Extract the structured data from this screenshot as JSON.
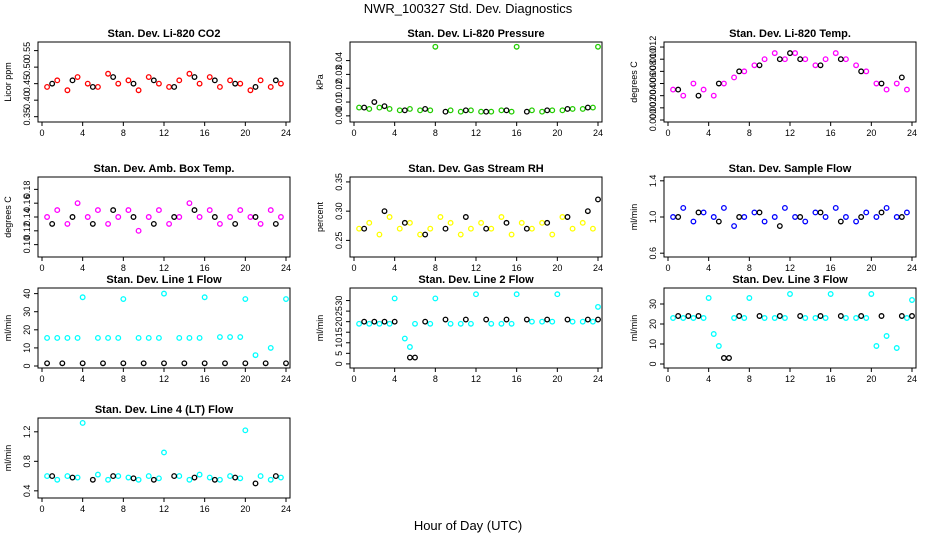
{
  "title": "NWR_100327  Std. Dev. Diagnostics",
  "xlabel": "Hour of Day (UTC)",
  "colors": {
    "red": "#ff0000",
    "green": "#22cc00",
    "magenta": "#ff00ff",
    "yellow": "#ffff00",
    "blue": "#0000ff",
    "cyan": "#00ffff",
    "black": "#000000"
  },
  "chart_data": [
    {
      "type": "scatter",
      "title": "Stan. Dev. Li-820 CO2",
      "ylabel": "Licor ppm",
      "xlim": [
        0,
        24
      ],
      "ylim": [
        0.34,
        0.57
      ],
      "xticks": [
        "0",
        "4",
        "8",
        "12",
        "16",
        "20",
        "24"
      ],
      "yticks": [
        "0.35",
        "0.40",
        "0.45",
        "0.50",
        "0.55"
      ],
      "series": [
        {
          "color": "red",
          "x": [
            0.5,
            1.5,
            2.5,
            3.5,
            4.5,
            5.5,
            6.5,
            7.5,
            8.5,
            9.5,
            10.5,
            11.5,
            12.5,
            13.5,
            14.5,
            15.5,
            16.5,
            17.5,
            18.5,
            19.5,
            20.5,
            21.5,
            22.5,
            23.5
          ],
          "y": [
            0.44,
            0.46,
            0.43,
            0.47,
            0.45,
            0.44,
            0.48,
            0.45,
            0.46,
            0.43,
            0.47,
            0.45,
            0.44,
            0.46,
            0.48,
            0.45,
            0.47,
            0.44,
            0.46,
            0.45,
            0.43,
            0.46,
            0.44,
            0.45
          ]
        },
        {
          "color": "black",
          "x": [
            1,
            3,
            5,
            7,
            9,
            11,
            13,
            15,
            17,
            19,
            21,
            23
          ],
          "y": [
            0.45,
            0.46,
            0.44,
            0.47,
            0.45,
            0.46,
            0.44,
            0.47,
            0.46,
            0.45,
            0.44,
            0.46
          ]
        }
      ]
    },
    {
      "type": "scatter",
      "title": "Stan. Dev. Li-820 Pressure",
      "ylabel": "kPa",
      "xlim": [
        0,
        24
      ],
      "ylim": [
        -0.003,
        0.052
      ],
      "xticks": [
        "0",
        "4",
        "8",
        "12",
        "16",
        "20",
        "24"
      ],
      "yticks": [
        "0.00",
        "0.01",
        "0.02",
        "0.03",
        "0.04"
      ],
      "series": [
        {
          "color": "green",
          "x": [
            0.5,
            1.5,
            2.5,
            3.5,
            4.5,
            5.5,
            6.5,
            7.5,
            8,
            9.5,
            10.5,
            11.5,
            12.5,
            13.5,
            14.5,
            15.5,
            16,
            17.5,
            18.5,
            19.5,
            20.5,
            21.5,
            22.5,
            23.5,
            24
          ],
          "y": [
            0.006,
            0.005,
            0.006,
            0.005,
            0.004,
            0.005,
            0.004,
            0.004,
            0.05,
            0.004,
            0.003,
            0.004,
            0.003,
            0.003,
            0.004,
            0.003,
            0.05,
            0.004,
            0.003,
            0.004,
            0.004,
            0.005,
            0.005,
            0.006,
            0.05
          ]
        },
        {
          "color": "black",
          "x": [
            1,
            2,
            3,
            5,
            7,
            9,
            11,
            13,
            15,
            17,
            19,
            21,
            23
          ],
          "y": [
            0.006,
            0.01,
            0.007,
            0.004,
            0.005,
            0.003,
            0.004,
            0.003,
            0.004,
            0.003,
            0.004,
            0.005,
            0.006
          ]
        }
      ]
    },
    {
      "type": "scatter",
      "title": "Stan. Dev. Li-820 Temp.",
      "ylabel": "degrees C",
      "xlim": [
        0,
        24
      ],
      "ylim": [
        0.0,
        0.0125
      ],
      "xticks": [
        "0",
        "4",
        "8",
        "12",
        "16",
        "20",
        "24"
      ],
      "yticks": [
        "0.000",
        "0.002",
        "0.004",
        "0.006",
        "0.008",
        "0.010",
        "0.012"
      ],
      "series": [
        {
          "color": "magenta",
          "x": [
            0.5,
            1.5,
            2.5,
            3.5,
            4.5,
            5.5,
            6.5,
            7.5,
            8.5,
            9.5,
            10.5,
            11.5,
            12.5,
            13.5,
            14.5,
            15.5,
            16.5,
            17.5,
            18.5,
            19.5,
            20.5,
            21.5,
            22.5,
            23.5
          ],
          "y": [
            0.005,
            0.004,
            0.006,
            0.005,
            0.004,
            0.006,
            0.007,
            0.008,
            0.009,
            0.01,
            0.011,
            0.01,
            0.011,
            0.01,
            0.009,
            0.01,
            0.011,
            0.01,
            0.009,
            0.008,
            0.006,
            0.005,
            0.006,
            0.005
          ]
        },
        {
          "color": "black",
          "x": [
            1,
            3,
            5,
            7,
            9,
            11,
            12,
            13,
            15,
            17,
            19,
            21,
            23
          ],
          "y": [
            0.005,
            0.004,
            0.006,
            0.008,
            0.009,
            0.01,
            0.011,
            0.01,
            0.009,
            0.01,
            0.008,
            0.006,
            0.007
          ]
        }
      ]
    },
    {
      "type": "scatter",
      "title": "Stan. Dev. Amb. Box Temp.",
      "ylabel": "degrees C",
      "xlim": [
        0,
        24
      ],
      "ylim": [
        0.085,
        0.195
      ],
      "xticks": [
        "0",
        "4",
        "8",
        "12",
        "16",
        "20",
        "24"
      ],
      "yticks": [
        "0.10",
        "0.12",
        "0.14",
        "0.16",
        "0.18"
      ],
      "series": [
        {
          "color": "magenta",
          "x": [
            0.5,
            1.5,
            2.5,
            3.5,
            4.5,
            5.5,
            6.5,
            7.5,
            8.5,
            9.5,
            10.5,
            11.5,
            12.5,
            13.5,
            14.5,
            15.5,
            16.5,
            17.5,
            18.5,
            19.5,
            20.5,
            21.5,
            22.5,
            23.5
          ],
          "y": [
            0.14,
            0.15,
            0.13,
            0.16,
            0.14,
            0.15,
            0.13,
            0.14,
            0.15,
            0.12,
            0.14,
            0.15,
            0.13,
            0.14,
            0.16,
            0.14,
            0.15,
            0.13,
            0.14,
            0.15,
            0.14,
            0.13,
            0.15,
            0.14
          ]
        },
        {
          "color": "black",
          "x": [
            1,
            3,
            5,
            7,
            9,
            11,
            13,
            15,
            17,
            19,
            21,
            23
          ],
          "y": [
            0.13,
            0.14,
            0.13,
            0.15,
            0.14,
            0.13,
            0.14,
            0.15,
            0.14,
            0.13,
            0.14,
            0.13
          ]
        }
      ]
    },
    {
      "type": "scatter",
      "title": "Stan. Dev. Gas Stream RH",
      "ylabel": "percent",
      "xlim": [
        0,
        24
      ],
      "ylim": [
        0.225,
        0.355
      ],
      "xticks": [
        "0",
        "4",
        "8",
        "12",
        "16",
        "20",
        "24"
      ],
      "yticks": [
        "0.25",
        "0.30",
        "0.35"
      ],
      "series": [
        {
          "color": "yellow",
          "x": [
            0.5,
            1.5,
            2.5,
            3.5,
            4.5,
            5.5,
            6.5,
            7.5,
            8.5,
            9.5,
            10.5,
            11.5,
            12.5,
            13.5,
            14.5,
            15.5,
            16.5,
            17.5,
            18.5,
            19.5,
            20.5,
            21.5,
            22.5,
            23.5
          ],
          "y": [
            0.27,
            0.28,
            0.26,
            0.29,
            0.27,
            0.28,
            0.26,
            0.27,
            0.29,
            0.28,
            0.26,
            0.27,
            0.28,
            0.27,
            0.29,
            0.26,
            0.28,
            0.27,
            0.28,
            0.26,
            0.29,
            0.27,
            0.28,
            0.27
          ]
        },
        {
          "color": "black",
          "x": [
            1,
            3,
            5,
            7,
            9,
            11,
            13,
            15,
            17,
            19,
            21,
            23,
            24
          ],
          "y": [
            0.27,
            0.3,
            0.28,
            0.26,
            0.27,
            0.29,
            0.27,
            0.28,
            0.27,
            0.28,
            0.29,
            0.3,
            0.32
          ]
        }
      ]
    },
    {
      "type": "scatter",
      "title": "Stan. Dev. Sample Flow",
      "ylabel": "ml/min",
      "xlim": [
        0,
        24
      ],
      "ylim": [
        0.58,
        1.42
      ],
      "xticks": [
        "0",
        "4",
        "8",
        "12",
        "16",
        "20",
        "24"
      ],
      "yticks": [
        "0.6",
        "1.0",
        "1.4"
      ],
      "series": [
        {
          "color": "blue",
          "x": [
            0.5,
            1.5,
            2.5,
            3.5,
            4.5,
            5.5,
            6.5,
            7.5,
            8.5,
            9.5,
            10.5,
            11.5,
            12.5,
            13.5,
            14.5,
            15.5,
            16.5,
            17.5,
            18.5,
            19.5,
            20.5,
            21.5,
            22.5,
            23.5
          ],
          "y": [
            1.0,
            1.1,
            0.95,
            1.05,
            1.0,
            1.1,
            0.9,
            1.0,
            1.05,
            0.95,
            1.0,
            1.1,
            1.0,
            0.95,
            1.05,
            1.0,
            1.1,
            1.0,
            0.95,
            1.05,
            1.0,
            1.1,
            1.0,
            1.05
          ]
        },
        {
          "color": "black",
          "x": [
            1,
            3,
            5,
            7,
            9,
            11,
            13,
            15,
            17,
            19,
            21,
            23
          ],
          "y": [
            1.0,
            1.05,
            0.95,
            1.0,
            1.05,
            0.9,
            1.0,
            1.05,
            0.95,
            1.0,
            1.05,
            1.0
          ]
        }
      ]
    },
    {
      "type": "scatter",
      "title": "Stan. Dev. Line 1 Flow",
      "ylabel": "ml/min",
      "xlim": [
        0,
        24
      ],
      "ylim": [
        0,
        42
      ],
      "xticks": [
        "0",
        "4",
        "8",
        "12",
        "16",
        "20",
        "24"
      ],
      "yticks": [
        "0",
        "10",
        "20",
        "30",
        "40"
      ],
      "series": [
        {
          "color": "cyan",
          "x": [
            0.5,
            1.5,
            2.5,
            3.5,
            4,
            5.5,
            6.5,
            7.5,
            8,
            9.5,
            10.5,
            11.5,
            12,
            13.5,
            14.5,
            15.5,
            16,
            17.5,
            18.5,
            19.5,
            20,
            21,
            22.5,
            24
          ],
          "y": [
            15.5,
            15.5,
            15.5,
            15.5,
            38,
            15.5,
            15.5,
            15.5,
            37,
            15.5,
            15.5,
            15.5,
            40,
            15.5,
            15.5,
            15.5,
            38,
            16,
            16,
            16,
            37,
            6,
            10,
            37
          ]
        },
        {
          "color": "black",
          "x": [
            0.5,
            2,
            4,
            6,
            8,
            10,
            12,
            14,
            16,
            18,
            20,
            22,
            24
          ],
          "y": [
            1.5,
            1.5,
            1.5,
            1.5,
            1.5,
            1.5,
            1.5,
            1.5,
            1.5,
            1.5,
            1.5,
            1.5,
            1.5
          ]
        }
      ]
    },
    {
      "type": "scatter",
      "title": "Stan. Dev. Line 2 Flow",
      "ylabel": "ml/min",
      "xlim": [
        0,
        24
      ],
      "ylim": [
        -1,
        35
      ],
      "xticks": [
        "0",
        "4",
        "8",
        "12",
        "16",
        "20",
        "24"
      ],
      "yticks": [
        "0",
        "5",
        "10",
        "15",
        "20",
        "25",
        "30"
      ],
      "series": [
        {
          "color": "cyan",
          "x": [
            0.5,
            1.5,
            2.5,
            3.5,
            4,
            5,
            5.5,
            6,
            7.5,
            8,
            9.5,
            10.5,
            11.5,
            12,
            13.5,
            14.5,
            15.5,
            16,
            17.5,
            18.5,
            19.5,
            20,
            21.5,
            22.5,
            23.5,
            24
          ],
          "y": [
            19,
            19,
            19,
            19,
            31,
            12,
            8,
            19,
            19,
            31,
            19,
            19,
            19,
            33,
            19,
            19,
            19,
            33,
            20,
            20,
            20,
            33,
            20,
            20,
            20,
            27
          ]
        },
        {
          "color": "black",
          "x": [
            1,
            2,
            3,
            4,
            5.5,
            6,
            7,
            9,
            11,
            13,
            15,
            17,
            19,
            21,
            23,
            24
          ],
          "y": [
            20,
            20,
            20,
            20,
            3,
            3,
            20,
            21,
            21,
            21,
            21,
            21,
            21,
            21,
            21,
            21
          ]
        }
      ]
    },
    {
      "type": "scatter",
      "title": "Stan. Dev. Line 3 Flow",
      "ylabel": "ml/min",
      "xlim": [
        0,
        24
      ],
      "ylim": [
        -1,
        37
      ],
      "xticks": [
        "0",
        "4",
        "8",
        "12",
        "16",
        "20",
        "24"
      ],
      "yticks": [
        "0",
        "10",
        "20",
        "30"
      ],
      "series": [
        {
          "color": "cyan",
          "x": [
            0.5,
            1.5,
            2.5,
            3.5,
            4,
            4.5,
            5,
            6.5,
            7.5,
            8,
            9.5,
            10.5,
            11.5,
            12,
            13.5,
            14.5,
            15.5,
            16,
            17.5,
            18.5,
            19.5,
            20,
            20.5,
            21.5,
            22.5,
            23.5,
            24
          ],
          "y": [
            23,
            23,
            23,
            23,
            33,
            15,
            9,
            23,
            23,
            33,
            23,
            23,
            23,
            35,
            23,
            23,
            23,
            35,
            23,
            23,
            23,
            35,
            9,
            14,
            8,
            23,
            32
          ]
        },
        {
          "color": "black",
          "x": [
            1,
            2,
            3,
            5.5,
            6,
            7,
            9,
            11,
            13,
            15,
            17,
            19,
            21,
            23,
            24
          ],
          "y": [
            24,
            24,
            24,
            3,
            3,
            24,
            24,
            24,
            24,
            24,
            24,
            24,
            24,
            24,
            24
          ]
        }
      ]
    },
    {
      "type": "scatter",
      "title": "Stan. Dev. Line 4 (LT) Flow",
      "ylabel": "ml/min",
      "xlim": [
        0,
        24
      ],
      "ylim": [
        0.33,
        1.36
      ],
      "xticks": [
        "0",
        "4",
        "8",
        "12",
        "16",
        "20",
        "24"
      ],
      "yticks": [
        "0.4",
        "0.8",
        "1.2"
      ],
      "series": [
        {
          "color": "cyan",
          "x": [
            0.5,
            1.5,
            2.5,
            3.5,
            4,
            5.5,
            6.5,
            7.5,
            8.5,
            9.5,
            10.5,
            11.5,
            12,
            13.5,
            14.5,
            15.5,
            16.5,
            17.5,
            18.5,
            19.5,
            20,
            21.5,
            22.5,
            23.5
          ],
          "y": [
            0.6,
            0.55,
            0.6,
            0.58,
            1.32,
            0.62,
            0.55,
            0.6,
            0.58,
            0.55,
            0.6,
            0.57,
            0.92,
            0.6,
            0.55,
            0.62,
            0.58,
            0.55,
            0.6,
            0.57,
            1.22,
            0.6,
            0.55,
            0.58
          ]
        },
        {
          "color": "black",
          "x": [
            1,
            3,
            5,
            7,
            9,
            11,
            13,
            15,
            17,
            19,
            21,
            23
          ],
          "y": [
            0.6,
            0.58,
            0.55,
            0.6,
            0.57,
            0.55,
            0.6,
            0.58,
            0.55,
            0.58,
            0.5,
            0.6
          ]
        }
      ]
    }
  ]
}
